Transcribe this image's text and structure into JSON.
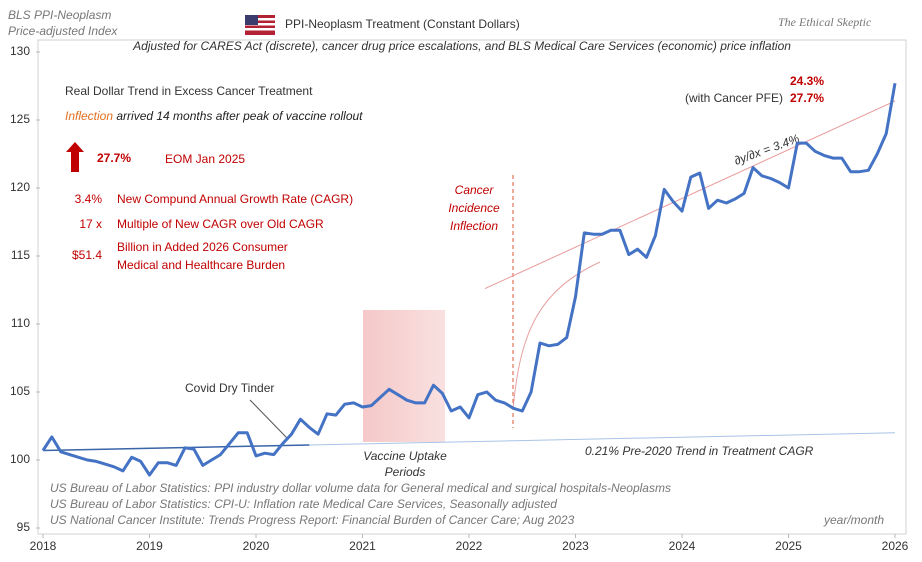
{
  "chart_data": {
    "type": "line",
    "title": "PPI-Neoplasm  Treatment  (Constant Dollars)",
    "subtitle": "Adjusted for CARES Act (discrete),  cancer drug price escalations,  and BLS Medical Care Services (economic) price inflation",
    "y_label_lines": [
      "BLS PPI-Neoplasm",
      "Price-adjusted  Index"
    ],
    "brand": "The Ethical Skeptic",
    "x_label": "year/month",
    "xlim": [
      2018,
      2026
    ],
    "xticks": [
      2018,
      2019,
      2020,
      2021,
      2022,
      2023,
      2024,
      2025,
      2026
    ],
    "ylim": [
      95,
      130
    ],
    "yticks": [
      95,
      100,
      105,
      110,
      115,
      120,
      125,
      130
    ],
    "grid": false,
    "x": [
      2018,
      2018.083,
      2018.167,
      2018.25,
      2018.333,
      2018.417,
      2018.5,
      2018.583,
      2018.667,
      2018.75,
      2018.833,
      2018.917,
      2019,
      2019.083,
      2019.167,
      2019.25,
      2019.333,
      2019.417,
      2019.5,
      2019.583,
      2019.667,
      2019.75,
      2019.833,
      2019.917,
      2020,
      2020.083,
      2020.167,
      2020.25,
      2020.333,
      2020.417,
      2020.5,
      2020.583,
      2020.667,
      2020.75,
      2020.833,
      2020.917,
      2021,
      2021.083,
      2021.167,
      2021.25,
      2021.333,
      2021.417,
      2021.5,
      2021.583,
      2021.667,
      2021.75,
      2021.833,
      2021.917,
      2022,
      2022.083,
      2022.167,
      2022.25,
      2022.333,
      2022.417,
      2022.5,
      2022.583,
      2022.667,
      2022.75,
      2022.833,
      2022.917,
      2023,
      2023.083,
      2023.167,
      2023.25,
      2023.333,
      2023.417,
      2023.5,
      2023.583,
      2023.667,
      2023.75,
      2023.833,
      2023.917,
      2024,
      2024.083,
      2024.167,
      2024.25,
      2024.333,
      2024.417,
      2024.5,
      2024.583,
      2024.667,
      2024.75,
      2024.833,
      2024.917,
      2025,
      2025.083,
      2025.167,
      2025.25,
      2025.333,
      2025.417,
      2025.5,
      2025.583,
      2025.667,
      2025.75,
      2025.833,
      2025.917,
      2026
    ],
    "series": [
      {
        "color": "#4472c4",
        "values": [
          100.7,
          101.7,
          100.6,
          100.4,
          100.2,
          100.0,
          99.9,
          99.7,
          99.5,
          99.2,
          100.2,
          99.9,
          98.9,
          99.8,
          99.8,
          99.6,
          100.9,
          100.8,
          99.6,
          100.0,
          100.4,
          101.2,
          102.0,
          102.0,
          100.3,
          100.5,
          100.4,
          101.2,
          101.9,
          103.0,
          102.4,
          101.9,
          103.4,
          103.3,
          104.1,
          104.2,
          103.9,
          104.0,
          104.6,
          105.2,
          104.8,
          104.4,
          104.2,
          104.2,
          105.5,
          104.9,
          103.6,
          103.9,
          103.1,
          104.8,
          105.0,
          104.4,
          104.2,
          103.8,
          103.6,
          105.0,
          108.6,
          108.4,
          108.5,
          109.0,
          112.0,
          116.7,
          116.6,
          116.6,
          116.9,
          116.9,
          115.1,
          115.5,
          114.9,
          116.5,
          119.9,
          119.0,
          118.3,
          120.8,
          121.1,
          118.5,
          119.1,
          118.9,
          119.2,
          119.6,
          121.5,
          120.9,
          120.7,
          120.4,
          120.0,
          123.3,
          123.3,
          122.7,
          122.4,
          122.2,
          122.2,
          121.2,
          121.2,
          121.3,
          122.5,
          124.0,
          127.7
        ]
      }
    ],
    "trend_lines": [
      {
        "color": "#a9c4e6",
        "x": [
          2018,
          2026
        ],
        "values": [
          100.7,
          102.0
        ]
      },
      {
        "color": "#3a64a8",
        "x": [
          2018,
          2020.5
        ],
        "values": [
          100.7,
          101.1
        ]
      },
      {
        "color": "#e89a9a",
        "x": [
          2022.15,
          2026
        ],
        "values": [
          112.6,
          126.4
        ]
      }
    ],
    "panel": {
      "heading": "Real Dollar Trend in Excess Cancer Treatment",
      "sub_highlight": "Inflection",
      "sub_rest": " arrived 14 months after peak of vaccine rollout",
      "big_value": "27.7%",
      "big_note": "EOM Jan 2025",
      "stats": [
        {
          "value": "3.4%",
          "lines": [
            "New Compund Annual Growth Rate (CAGR)"
          ]
        },
        {
          "value": "17 x",
          "lines": [
            "Multiple of New CAGR over Old CAGR"
          ]
        },
        {
          "value": "$51.4",
          "lines": [
            "Billion in Added 2026 Consumer",
            "Medical and Healthcare Burden"
          ]
        }
      ]
    },
    "annotations": {
      "inflection": [
        "Cancer",
        "Incidence",
        "Inflection"
      ],
      "tinder": "Covid Dry Tinder",
      "vaccine": [
        "Vaccine Uptake",
        "Periods"
      ],
      "old_trend": "0.21%  Pre-2020 Trend in Treatment CAGR",
      "slope": "∂y/∂x  =  3.4%",
      "end_values": [
        "24.3%",
        "27.7%"
      ],
      "end_note": "(with Cancer PFE)"
    },
    "sources": [
      "US Bureau of Labor Statistics: PPI industry dollar volume data for General medical and surgical hospitals-Neoplasms",
      "US Bureau of Labor Statistics: CPI-U: Inflation rate Medical Care Services, Seasonally adjusted",
      "US National Cancer Institute: Trends Progress Report: Financial Burden of Cancer Care; Aug 2023"
    ]
  }
}
